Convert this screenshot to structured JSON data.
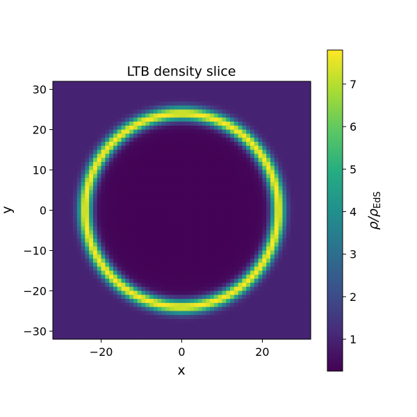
{
  "chart_data": {
    "type": "heatmap",
    "title": "LTB density slice",
    "xlabel": "x",
    "ylabel": "y",
    "xlim": [
      -32,
      32
    ],
    "ylim": [
      -32,
      32
    ],
    "xticks": [
      -20,
      0,
      20
    ],
    "xtick_labels": [
      "−20",
      "0",
      "20"
    ],
    "yticks": [
      -30,
      -20,
      -10,
      0,
      10,
      20,
      30
    ],
    "ytick_labels": [
      "−30",
      "−20",
      "−10",
      "0",
      "10",
      "20",
      "30"
    ],
    "colormap": "viridis",
    "colorbar": {
      "label_main": "ρ/ρ",
      "label_sub": "EdS",
      "range": [
        0.25,
        7.8
      ],
      "ticks": [
        1,
        2,
        3,
        4,
        5,
        6,
        7
      ],
      "tick_labels": [
        "1",
        "2",
        "3",
        "4",
        "5",
        "6",
        "7"
      ]
    },
    "field": {
      "description_of_values": "spherical shell overdensity",
      "grid": 64,
      "inner_value": 0.3,
      "outer_value": 1.0,
      "shell_radius": 24,
      "shell_peak": 7.8,
      "shell_width": 1.2
    },
    "grid": false
  }
}
